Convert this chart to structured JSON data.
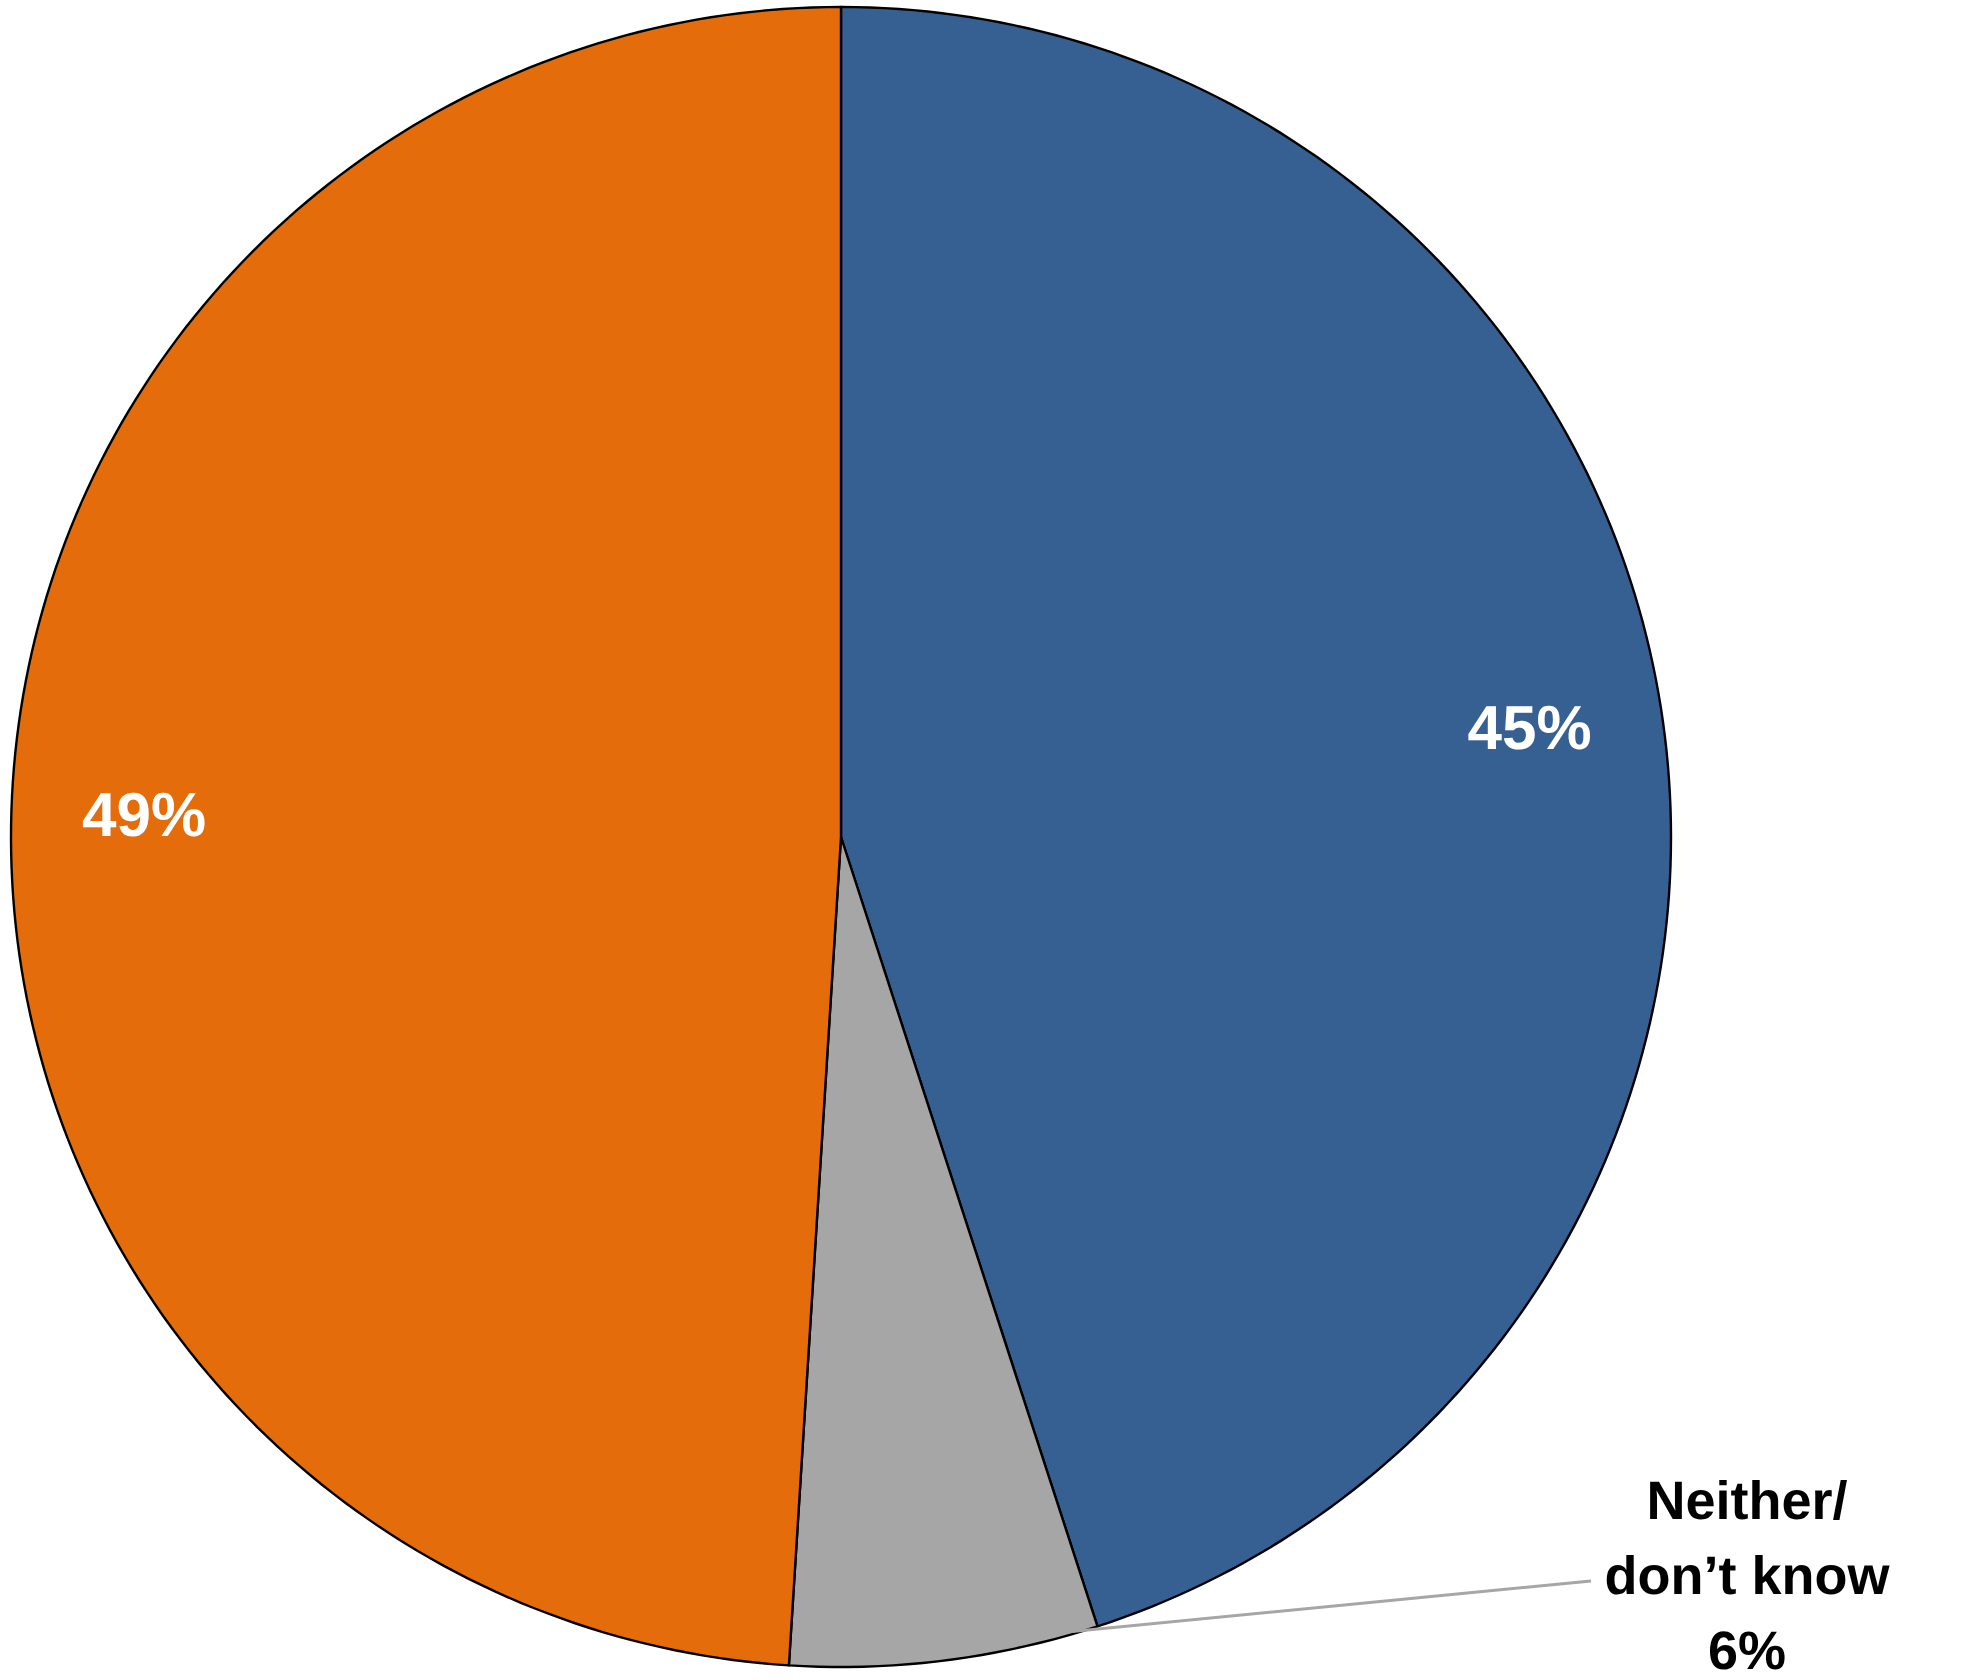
{
  "chart_data": {
    "type": "pie",
    "categories": [
      null,
      "Neither/\ndon’t know",
      null
    ],
    "values": [
      45,
      6,
      49
    ],
    "colors": [
      "#376092",
      "#a6a6a6",
      "#e46c0a"
    ],
    "value_labels": [
      "45%",
      "6%",
      "49%"
    ]
  }
}
